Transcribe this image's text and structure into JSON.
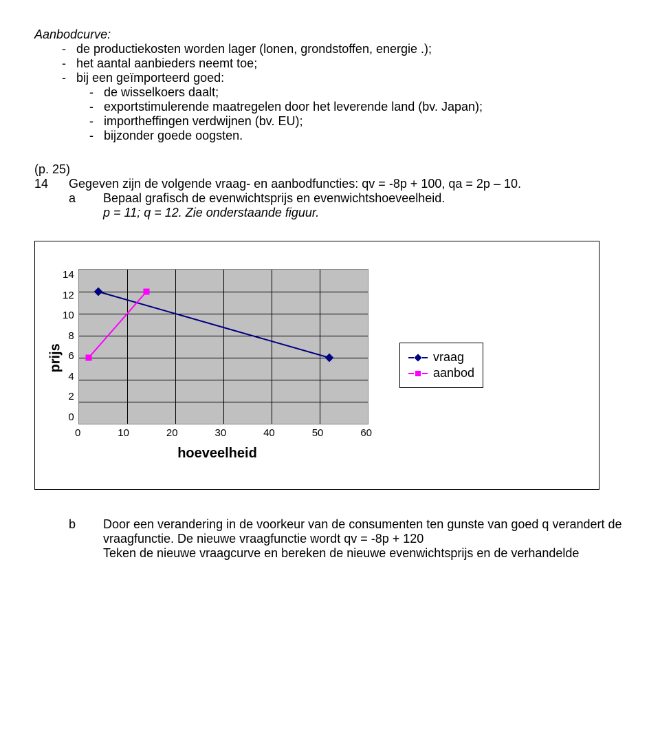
{
  "section_title": "Aanbodcurve:",
  "bullets": [
    "de productiekosten worden lager (lonen, grondstoffen, energie .);",
    "het aantal aanbieders neemt toe;",
    "bij een geïmporteerd goed:"
  ],
  "sub_bullets": [
    "de wisselkoers daalt;",
    "exportstimulerende maatregelen door het leverende land (bv. Japan);",
    "importheffingen verdwijnen (bv. EU);",
    "bijzonder goede oogsten."
  ],
  "page_ref": "(p. 25)",
  "q_num": "14",
  "q_text": "Gegeven zijn de volgende vraag- en aanbodfuncties: qv = -8p + 100, qa = 2p – 10.",
  "sub_a_label": "a",
  "sub_a_text": "Bepaal grafisch de evenwichtsprijs en evenwichtshoeveelheid.",
  "sub_a_answer": "p = 11; q = 12. Zie onderstaande figuur.",
  "chart": {
    "type": "line",
    "background_color": "#c0c0c0",
    "grid_color": "#000000",
    "x_title": "hoeveelheid",
    "y_title": "prijs",
    "x_ticks": [
      "0",
      "10",
      "20",
      "30",
      "40",
      "50",
      "60"
    ],
    "y_ticks": [
      "14",
      "12",
      "10",
      "8",
      "6",
      "4",
      "2",
      "0"
    ],
    "xlim": [
      0,
      60
    ],
    "ylim": [
      0,
      14
    ],
    "series": [
      {
        "name": "vraag",
        "color": "#000080",
        "marker": "diamond",
        "points": [
          [
            4,
            12
          ],
          [
            52,
            6
          ]
        ]
      },
      {
        "name": "aanbod",
        "color": "#ff00ff",
        "marker": "square",
        "points": [
          [
            2,
            6
          ],
          [
            14,
            12
          ]
        ]
      }
    ],
    "legend": [
      "vraag",
      "aanbod"
    ]
  },
  "sub_b_label": "b",
  "sub_b_text": "Door een verandering in de voorkeur van de consumenten ten gunste van goed q verandert de vraagfunctie. De nieuwe vraagfunctie wordt qv = -8p + 120",
  "sub_b_text2": "Teken de nieuwe vraagcurve en bereken de nieuwe evenwichtsprijs en de verhandelde"
}
